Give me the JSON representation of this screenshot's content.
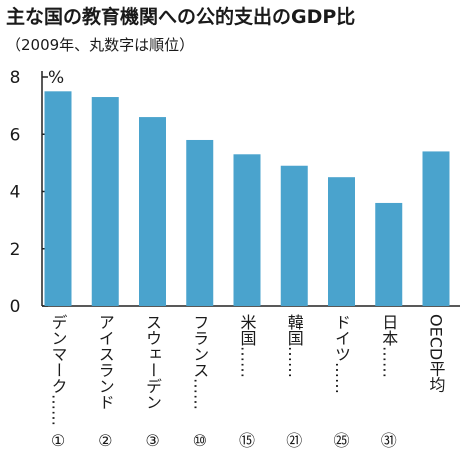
{
  "chart_data": {
    "type": "bar",
    "title": "主な国の教育機関への公的支出のGDP比",
    "subtitle": "（2009年、丸数字は順位）",
    "ylabel": "",
    "yunit": "%",
    "xlabel": "",
    "ylim": [
      0,
      8
    ],
    "yticks": [
      "0",
      "2",
      "4",
      "6",
      "8"
    ],
    "grid": false,
    "bar_color": "#4aa3cd",
    "categories": [
      "デンマーク……",
      "アイスランド",
      "スウェーデン",
      "フランス……",
      "米国……",
      "韓国……",
      "ドイツ……",
      "日本……",
      "OECD平均"
    ],
    "ranks": [
      "①",
      "②",
      "③",
      "⑩",
      "⑮",
      "㉑",
      "㉕",
      "㉛",
      ""
    ],
    "values": [
      7.5,
      7.3,
      6.6,
      5.8,
      5.3,
      4.9,
      4.5,
      3.6,
      5.4
    ]
  }
}
